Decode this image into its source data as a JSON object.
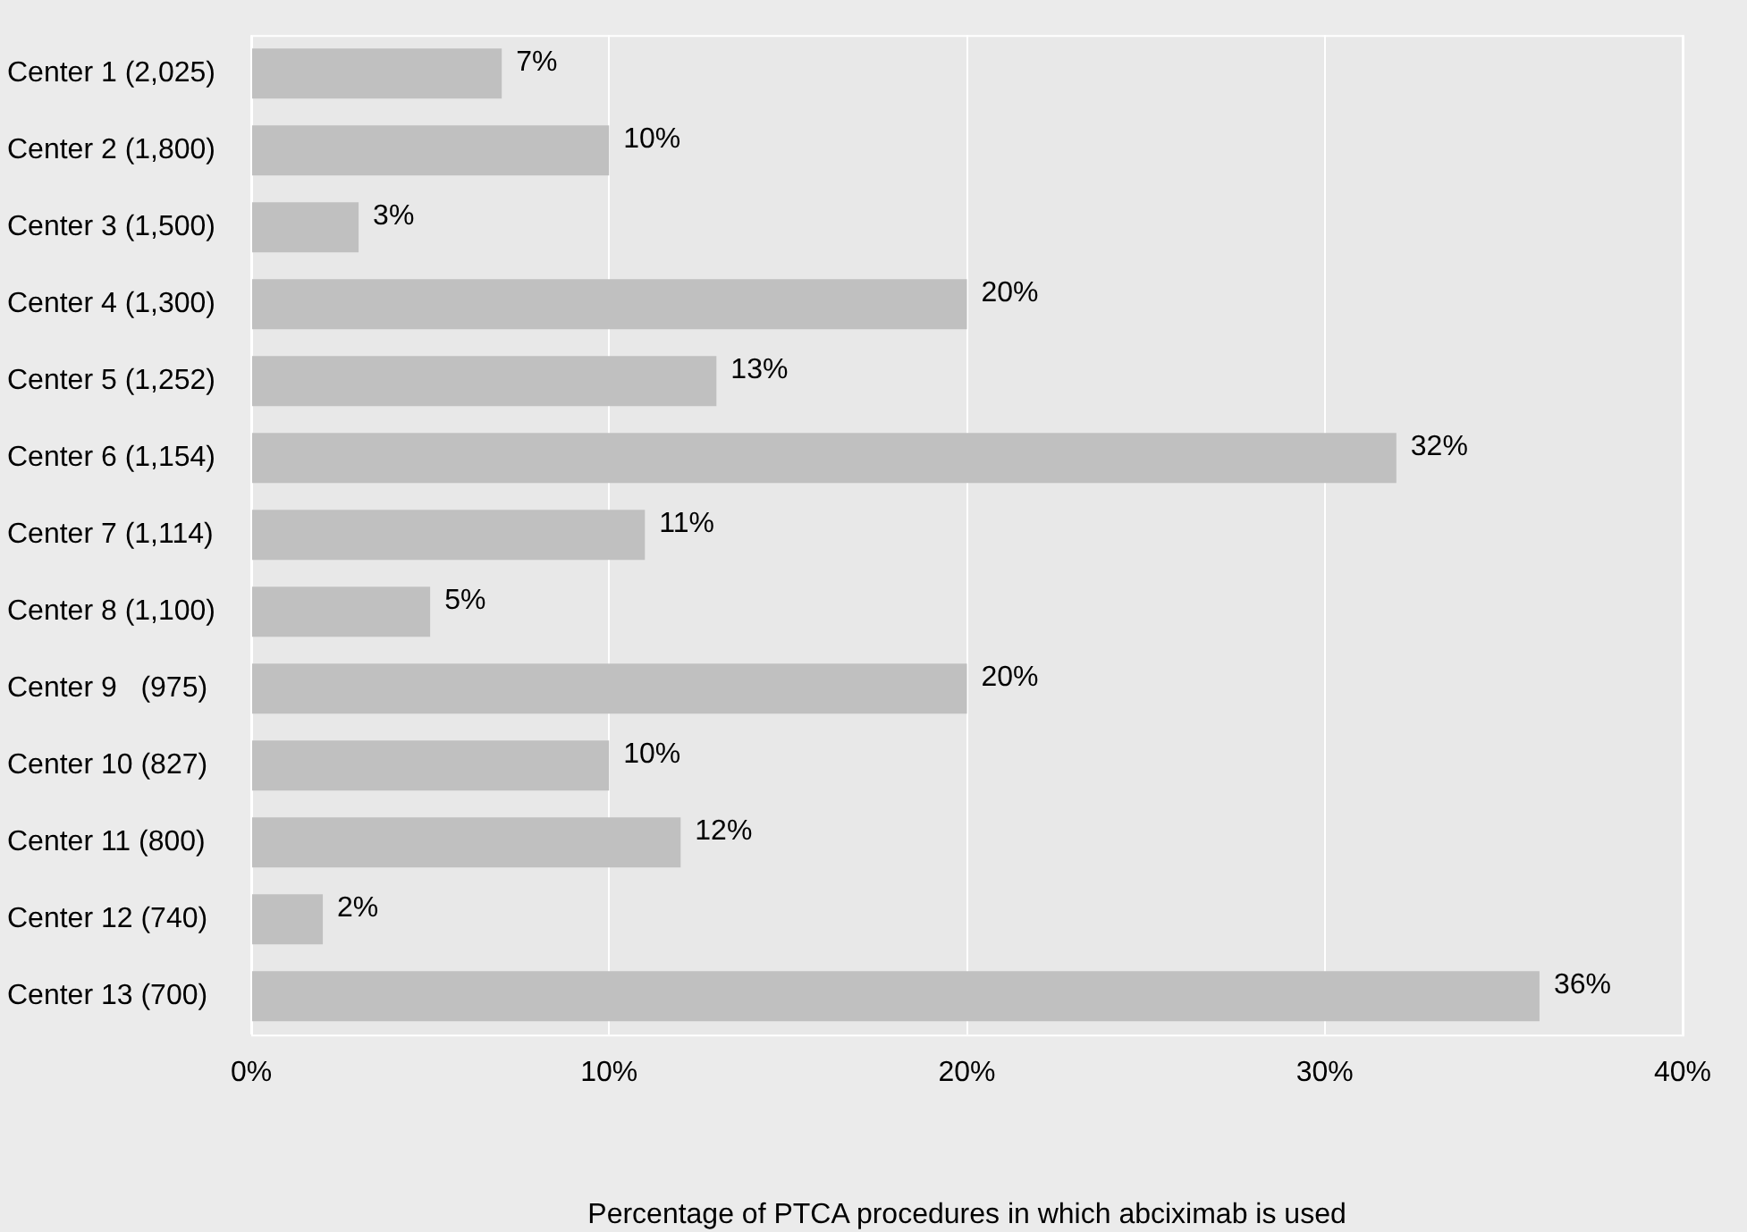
{
  "chart_data": {
    "type": "bar",
    "orientation": "horizontal",
    "xlabel": "Percentage of PTCA procedures in which abciximab is used",
    "categories": [
      "Center 1 (2,025)",
      "Center 2 (1,800)",
      "Center 3 (1,500)",
      "Center 4 (1,300)",
      "Center 5 (1,252)",
      "Center 6 (1,154)",
      "Center 7 (1,114)",
      "Center 8 (1,100)",
      "Center 9   (975)",
      "Center 10 (827)",
      "Center 11 (800)",
      "Center 12 (740)",
      "Center 13 (700)"
    ],
    "values": [
      7,
      10,
      3,
      20,
      13,
      32,
      11,
      5,
      20,
      10,
      12,
      2,
      36
    ],
    "value_labels": [
      "7%",
      "10%",
      "3%",
      "20%",
      "13%",
      "32%",
      "11%",
      "5%",
      "20%",
      "10%",
      "12%",
      "2%",
      "36%"
    ],
    "color": "#c0c0c0",
    "xlim": [
      0,
      40
    ],
    "xticks": [
      {
        "value": 0,
        "label": "0%"
      },
      {
        "value": 10,
        "label": "10%"
      },
      {
        "value": 20,
        "label": "20%"
      },
      {
        "value": 30,
        "label": "30%"
      },
      {
        "value": 40,
        "label": "40%"
      }
    ],
    "grid": "x",
    "legend": false
  }
}
